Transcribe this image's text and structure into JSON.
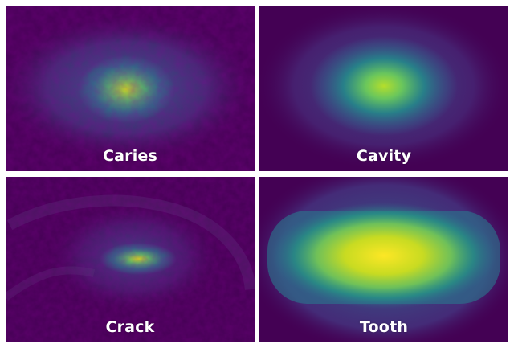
{
  "panels": [
    {
      "label": "Caries"
    },
    {
      "label": "Cavity"
    },
    {
      "label": "Crack"
    },
    {
      "label": "Tooth"
    }
  ],
  "colors": {
    "background": "#ffffff",
    "colormap": [
      "#440154",
      "#3b528b",
      "#21918c",
      "#5ec962",
      "#fde725"
    ]
  }
}
